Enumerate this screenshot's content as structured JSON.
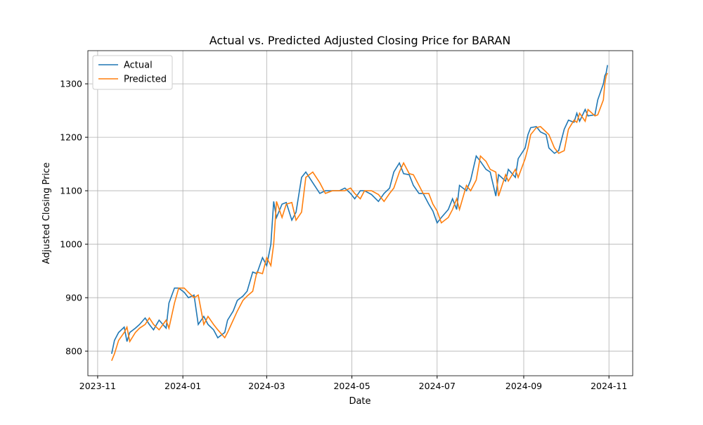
{
  "chart_data": {
    "type": "line",
    "title": "Actual vs. Predicted Adjusted Closing Price for BARAN",
    "x_label": "Date",
    "y_label": "Adjusted Closing Price",
    "x": [
      "2023-11-11",
      "2023-11-13",
      "2023-11-16",
      "2023-11-20",
      "2023-11-22",
      "2023-11-24",
      "2023-11-28",
      "2023-12-01",
      "2023-12-05",
      "2023-12-08",
      "2023-12-11",
      "2023-12-15",
      "2023-12-20",
      "2023-12-22",
      "2023-12-26",
      "2023-12-29",
      "2024-01-02",
      "2024-01-05",
      "2024-01-09",
      "2024-01-12",
      "2024-01-16",
      "2024-01-19",
      "2024-01-23",
      "2024-01-26",
      "2024-01-31",
      "2024-02-02",
      "2024-02-06",
      "2024-02-09",
      "2024-02-13",
      "2024-02-16",
      "2024-02-20",
      "2024-02-23",
      "2024-02-27",
      "2024-03-01",
      "2024-03-04",
      "2024-03-06",
      "2024-03-08",
      "2024-03-12",
      "2024-03-15",
      "2024-03-19",
      "2024-03-22",
      "2024-03-26",
      "2024-03-29",
      "2024-04-03",
      "2024-04-08",
      "2024-04-12",
      "2024-04-17",
      "2024-04-22",
      "2024-04-26",
      "2024-04-30",
      "2024-05-03",
      "2024-05-07",
      "2024-05-10",
      "2024-05-15",
      "2024-05-20",
      "2024-05-24",
      "2024-05-28",
      "2024-05-31",
      "2024-06-04",
      "2024-06-07",
      "2024-06-11",
      "2024-06-14",
      "2024-06-18",
      "2024-06-21",
      "2024-06-25",
      "2024-06-28",
      "2024-07-01",
      "2024-07-04",
      "2024-07-09",
      "2024-07-12",
      "2024-07-15",
      "2024-07-17",
      "2024-07-22",
      "2024-07-25",
      "2024-07-29",
      "2024-08-01",
      "2024-08-05",
      "2024-08-08",
      "2024-08-12",
      "2024-08-14",
      "2024-08-19",
      "2024-08-21",
      "2024-08-26",
      "2024-08-28",
      "2024-09-02",
      "2024-09-04",
      "2024-09-06",
      "2024-09-10",
      "2024-09-13",
      "2024-09-17",
      "2024-09-19",
      "2024-09-23",
      "2024-09-26",
      "2024-09-30",
      "2024-10-03",
      "2024-10-07",
      "2024-10-09",
      "2024-10-11",
      "2024-10-15",
      "2024-10-17",
      "2024-10-22",
      "2024-10-24",
      "2024-10-28",
      "2024-10-29",
      "2024-10-30",
      "2024-10-31"
    ],
    "series": [
      {
        "name": "Actual",
        "color": "#1f77b4",
        "values": [
          795,
          820,
          835,
          845,
          818,
          835,
          843,
          850,
          862,
          850,
          840,
          858,
          843,
          890,
          918,
          918,
          910,
          900,
          905,
          850,
          865,
          850,
          840,
          825,
          835,
          858,
          875,
          895,
          903,
          912,
          948,
          945,
          975,
          960,
          1000,
          1080,
          1050,
          1075,
          1078,
          1045,
          1060,
          1125,
          1135,
          1115,
          1095,
          1100,
          1100,
          1100,
          1105,
          1095,
          1085,
          1100,
          1100,
          1093,
          1080,
          1095,
          1105,
          1135,
          1152,
          1132,
          1130,
          1110,
          1095,
          1095,
          1075,
          1062,
          1040,
          1050,
          1065,
          1085,
          1065,
          1110,
          1100,
          1120,
          1165,
          1155,
          1140,
          1135,
          1090,
          1130,
          1118,
          1140,
          1125,
          1160,
          1180,
          1205,
          1218,
          1220,
          1210,
          1205,
          1180,
          1170,
          1175,
          1215,
          1232,
          1228,
          1245,
          1230,
          1252,
          1240,
          1242,
          1270,
          1300,
          1315,
          1320,
          1335
        ]
      },
      {
        "name": "Predicted",
        "color": "#ff7f0e",
        "values": [
          782,
          795,
          820,
          835,
          845,
          818,
          835,
          843,
          850,
          862,
          850,
          840,
          858,
          843,
          890,
          918,
          918,
          910,
          900,
          905,
          850,
          865,
          850,
          840,
          825,
          835,
          858,
          875,
          895,
          903,
          912,
          948,
          945,
          975,
          960,
          1000,
          1080,
          1050,
          1075,
          1078,
          1045,
          1060,
          1125,
          1135,
          1115,
          1095,
          1100,
          1100,
          1100,
          1105,
          1095,
          1085,
          1100,
          1100,
          1093,
          1080,
          1095,
          1105,
          1135,
          1152,
          1132,
          1130,
          1110,
          1095,
          1095,
          1075,
          1062,
          1040,
          1050,
          1065,
          1085,
          1065,
          1110,
          1100,
          1120,
          1165,
          1155,
          1140,
          1135,
          1090,
          1130,
          1118,
          1140,
          1125,
          1160,
          1180,
          1205,
          1218,
          1220,
          1210,
          1205,
          1180,
          1170,
          1175,
          1215,
          1232,
          1228,
          1245,
          1230,
          1252,
          1240,
          1242,
          1270,
          1300,
          1315,
          1320
        ]
      }
    ],
    "xlim": [
      "2023-10-25",
      "2024-11-18"
    ],
    "xticks": [
      {
        "value": "2023-11-01",
        "label": "2023-11"
      },
      {
        "value": "2024-01-01",
        "label": "2024-01"
      },
      {
        "value": "2024-03-01",
        "label": "2024-03"
      },
      {
        "value": "2024-05-01",
        "label": "2024-05"
      },
      {
        "value": "2024-07-01",
        "label": "2024-07"
      },
      {
        "value": "2024-09-01",
        "label": "2024-09"
      },
      {
        "value": "2024-11-01",
        "label": "2024-11"
      }
    ],
    "ylim": [
      754,
      1362
    ],
    "yticks": [
      800,
      900,
      1000,
      1100,
      1200,
      1300
    ],
    "grid": true,
    "legend": "upper left"
  }
}
